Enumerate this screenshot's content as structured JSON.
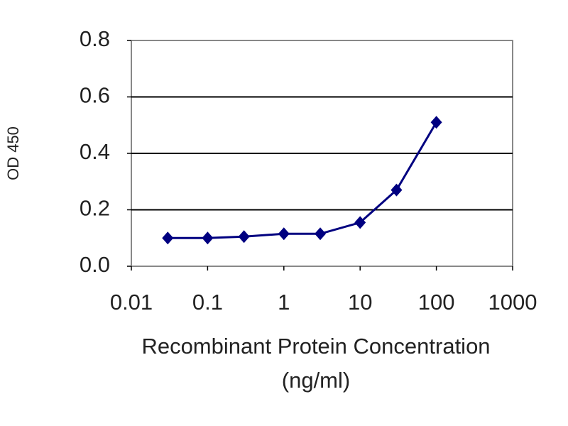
{
  "chart_data": {
    "type": "line",
    "ylabel": "OD 450",
    "xlabel": [
      "Recombinant Protein Concentration",
      "(ng/ml)"
    ],
    "x": [
      0.03,
      0.1,
      0.3,
      1,
      3,
      10,
      30,
      100
    ],
    "values": [
      0.1,
      0.1,
      0.105,
      0.115,
      0.115,
      0.155,
      0.27,
      0.51
    ],
    "color": "#000080",
    "xscale": "log",
    "xlim": [
      0.01,
      1000
    ],
    "xticks": [
      0.01,
      0.1,
      1,
      10,
      100,
      1000
    ],
    "ylim": [
      0,
      0.8
    ],
    "yticks": [
      {
        "value": 0,
        "label": "0.0"
      },
      0.2,
      0.4,
      0.6,
      0.8
    ],
    "grid": true
  }
}
